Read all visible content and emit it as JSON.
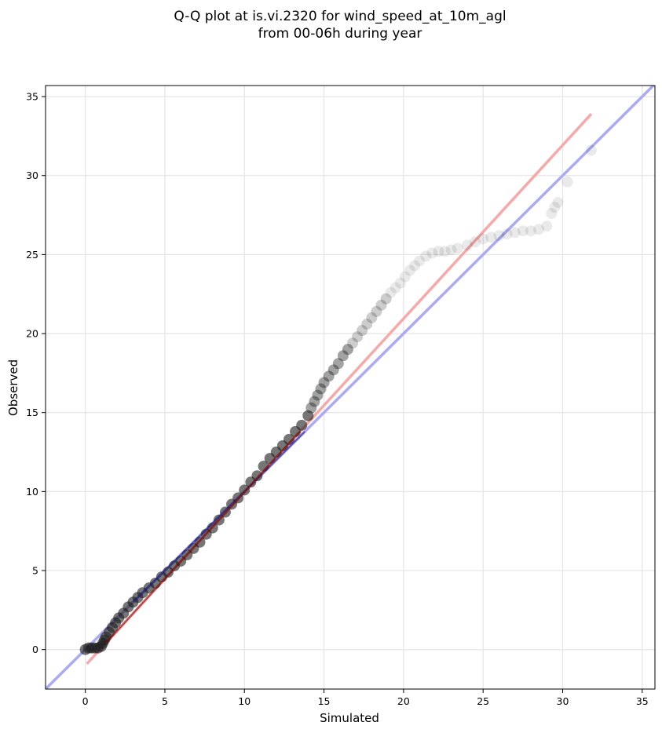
{
  "chart_data": {
    "type": "scatter",
    "title_lines": [
      "Q-Q plot at is.vi.2320 for wind_speed_at_10m_agl",
      "from 00-06h during year"
    ],
    "xlabel": "Simulated",
    "ylabel": "Observed",
    "xlim": [
      -2.5,
      35.8
    ],
    "ylim": [
      -2.5,
      35.7
    ],
    "xticks": [
      0,
      5,
      10,
      15,
      20,
      25,
      30,
      35
    ],
    "yticks": [
      0,
      5,
      10,
      15,
      20,
      25,
      30,
      35
    ],
    "grid": true,
    "colors": {
      "points": "#1a1a1a",
      "identity_line": "#aaaaf5",
      "fit_line": "#f7a8a8",
      "grid": "#e6e6e6",
      "inner_identity": "#1a1a8c",
      "inner_fit": "#8b0000"
    },
    "reference_lines": [
      {
        "kind": "identity",
        "x": [
          -2.5,
          35.8
        ],
        "y": [
          -2.5,
          35.8
        ]
      },
      {
        "kind": "fit",
        "x": [
          0.1,
          31.8
        ],
        "y": [
          -0.9,
          33.9
        ]
      }
    ],
    "series": [
      {
        "x": [
          0.0,
          0.2,
          0.4,
          0.6,
          0.8,
          1.0,
          1.1,
          1.2,
          1.3,
          1.5,
          1.7,
          1.9,
          2.1,
          2.4,
          2.7,
          3.0,
          3.3,
          3.6,
          4.0,
          4.4,
          4.8,
          5.2,
          5.6,
          6.0,
          6.4,
          6.8,
          7.2,
          7.6,
          8.0,
          8.4,
          8.8,
          9.2,
          9.6,
          10.0,
          10.4,
          10.8,
          11.2,
          11.6,
          12.0,
          12.4,
          12.8,
          13.2,
          13.6,
          14.0,
          14.2,
          14.4,
          14.6,
          14.8,
          15.0,
          15.3,
          15.6,
          15.9,
          16.2,
          16.5,
          16.8,
          17.1,
          17.4,
          17.7,
          18.0,
          18.3,
          18.6,
          18.9,
          19.2,
          19.5,
          19.8,
          20.1,
          20.4,
          20.7,
          21.0,
          21.4,
          21.8,
          22.2,
          22.6,
          23.0,
          23.4,
          24.0,
          24.5,
          25.0,
          25.5,
          26.0,
          26.5,
          27.0,
          27.5,
          28.0,
          28.5,
          29.0,
          29.3,
          29.5,
          29.7,
          30.3,
          31.8
        ],
        "y": [
          0.0,
          0.1,
          0.1,
          0.1,
          0.1,
          0.2,
          0.4,
          0.6,
          0.8,
          1.1,
          1.4,
          1.7,
          2.0,
          2.3,
          2.7,
          3.0,
          3.3,
          3.6,
          3.9,
          4.2,
          4.6,
          4.9,
          5.3,
          5.6,
          6.0,
          6.4,
          6.8,
          7.3,
          7.7,
          8.2,
          8.7,
          9.2,
          9.6,
          10.1,
          10.6,
          11.0,
          11.6,
          12.1,
          12.5,
          12.9,
          13.3,
          13.8,
          14.2,
          14.8,
          15.3,
          15.7,
          16.1,
          16.5,
          16.9,
          17.3,
          17.7,
          18.1,
          18.6,
          19.0,
          19.4,
          19.8,
          20.2,
          20.6,
          21.0,
          21.4,
          21.8,
          22.2,
          22.6,
          22.9,
          23.2,
          23.6,
          24.0,
          24.3,
          24.6,
          24.9,
          25.1,
          25.2,
          25.2,
          25.3,
          25.4,
          25.6,
          25.8,
          26.0,
          26.1,
          26.2,
          26.3,
          26.4,
          26.5,
          26.5,
          26.6,
          26.8,
          27.6,
          28.0,
          28.3,
          29.6,
          31.6
        ]
      }
    ]
  }
}
